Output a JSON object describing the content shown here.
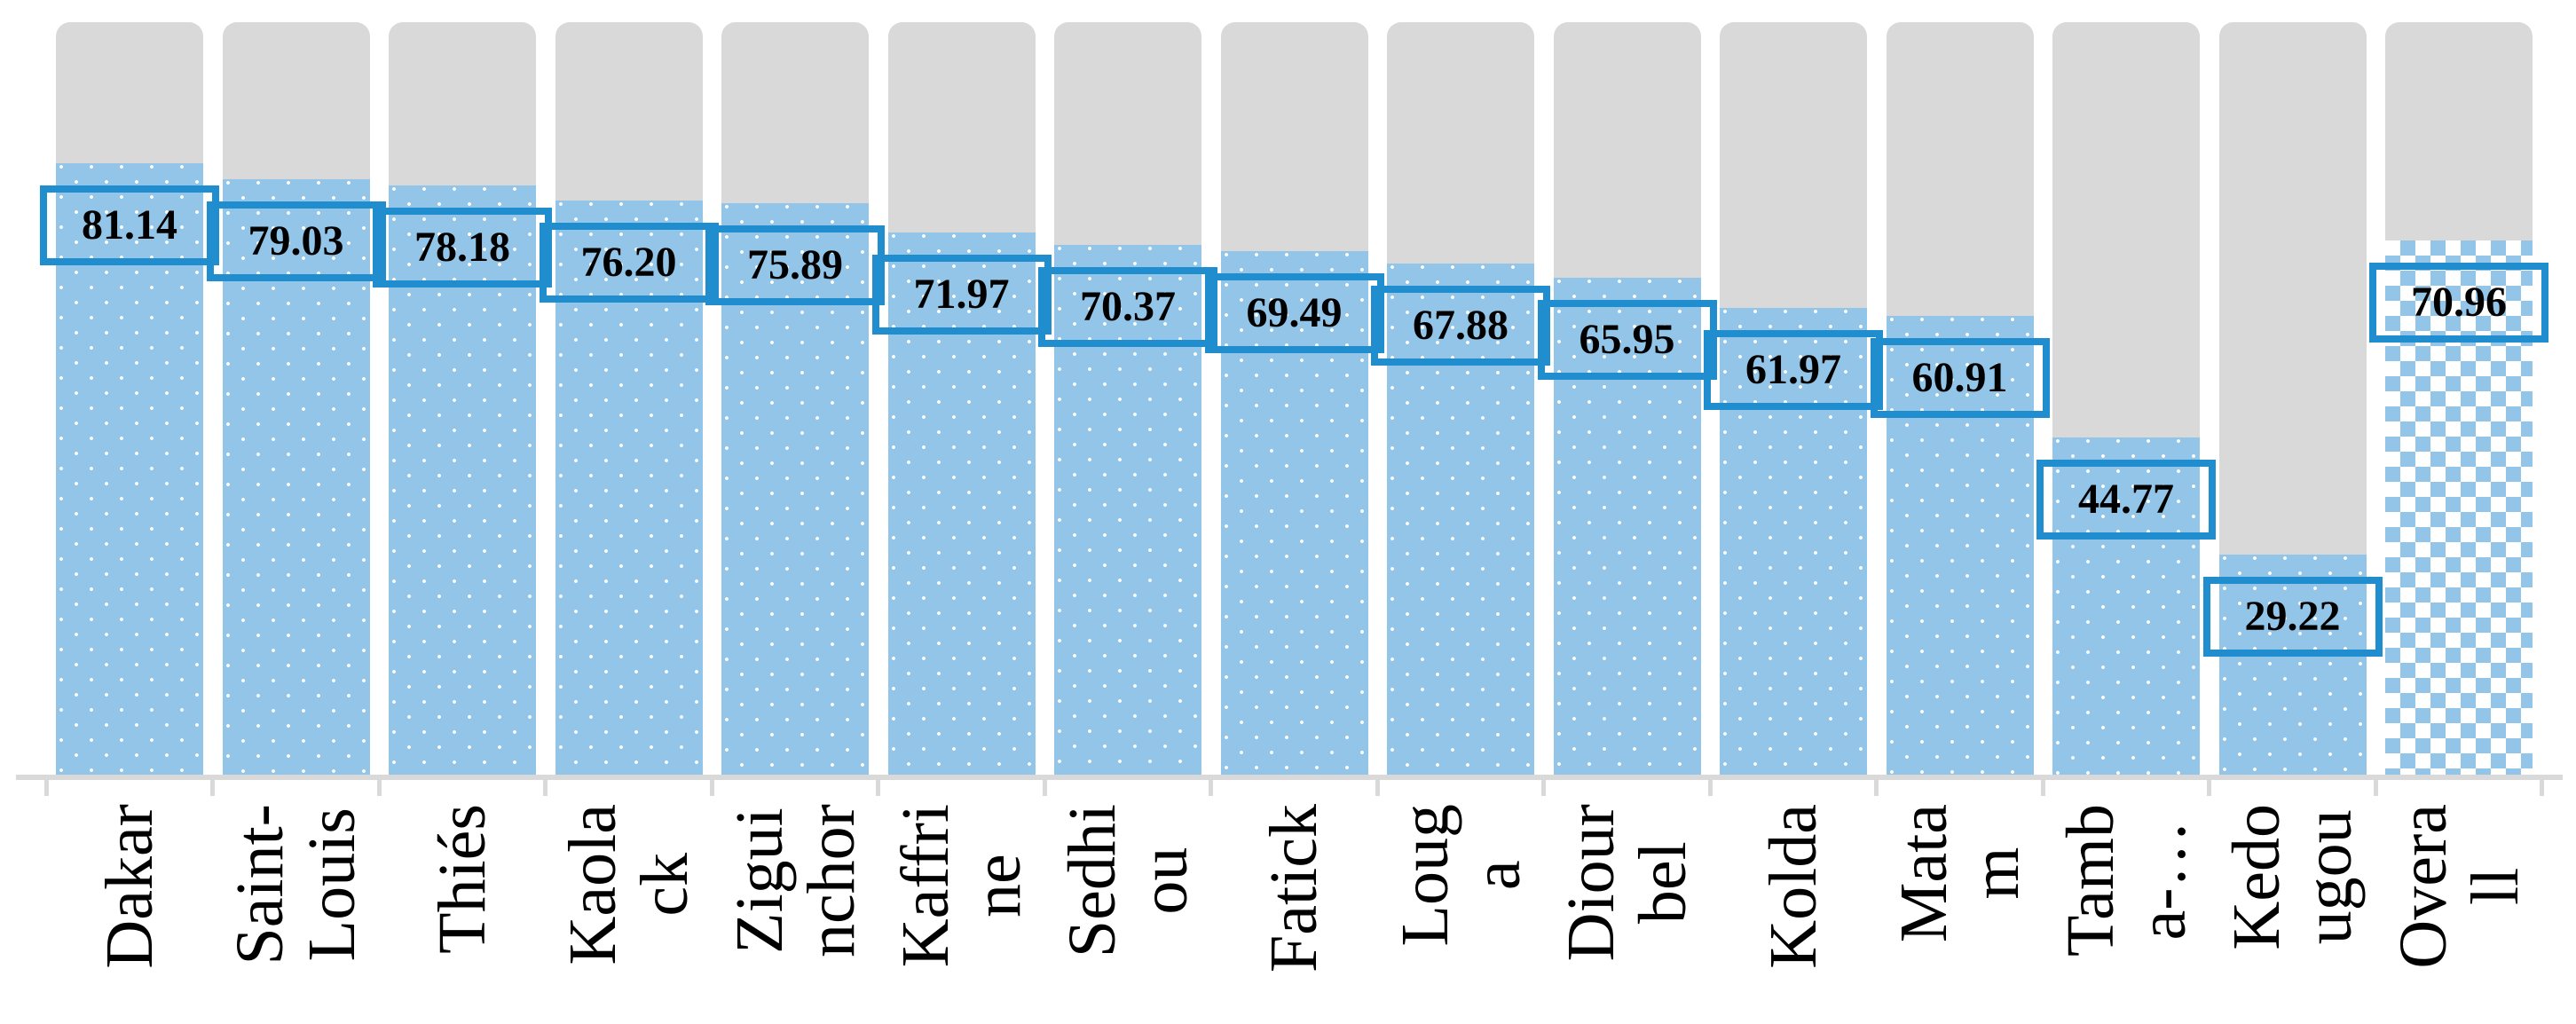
{
  "chart_data": {
    "type": "bar",
    "title": "",
    "xlabel": "",
    "ylabel": "",
    "ylim": [
      0,
      100
    ],
    "grid": false,
    "legend_position": "none",
    "categories": [
      "Dakar",
      "Saint-\nLouis",
      "Thiés",
      "Kaola\nck",
      "Zigui\nnchor",
      "Kaffri\nne",
      "Sedhi\nou",
      "Fatick",
      "Loug\na",
      "Diour\nbel",
      "Kolda",
      "Mata\nm",
      "Tamb\na-…",
      "Kedo\nugou",
      "Overa\nll"
    ],
    "values": [
      81.14,
      79.03,
      78.18,
      76.2,
      75.89,
      71.97,
      70.37,
      69.49,
      67.88,
      65.95,
      61.97,
      60.91,
      44.77,
      29.22,
      70.96
    ],
    "value_label_format": "2-decimals",
    "overall_index": 14,
    "patterns": {
      "regions": "white-dots-on-blue",
      "overall": "blue-white-checkerboard"
    },
    "background_track": "full-height 100% gray rounded-top column behind every bar",
    "colors": {
      "bar_fill": "#92C5E8",
      "pattern_dot": "#FFFFFF",
      "track": "#D9D9D9",
      "axis": "#D9D9D9",
      "value_box_border": "#1F8DCE",
      "value_text": "#000000",
      "category_text": "#000000"
    }
  }
}
